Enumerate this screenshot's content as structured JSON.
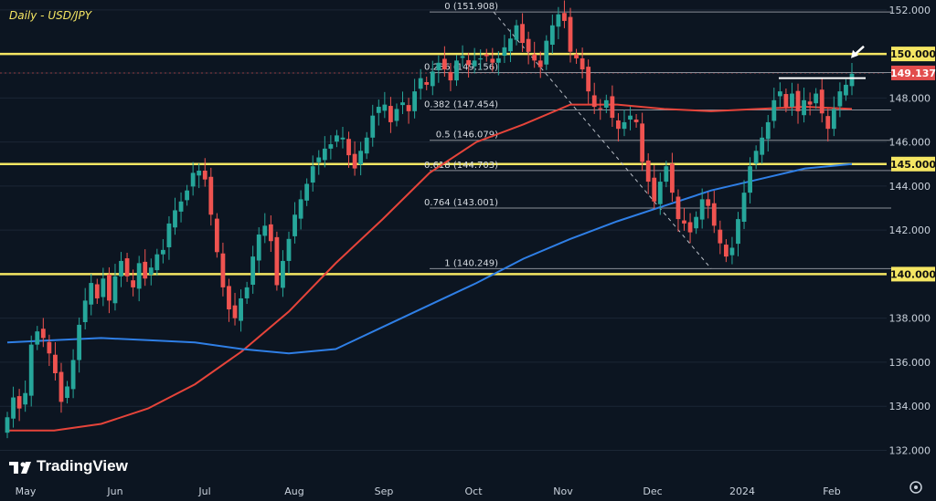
{
  "title": "Daily - USD/JPY",
  "brand": "TradingView",
  "chart_data": {
    "type": "candlestick",
    "title": "Daily - USD/JPY",
    "ylim": [
      130.9,
      152.45
    ],
    "y_ticks": [
      {
        "value": 132,
        "label": "132.000"
      },
      {
        "value": 134,
        "label": "134.000"
      },
      {
        "value": 136,
        "label": "136.000"
      },
      {
        "value": 138,
        "label": "138.000"
      },
      {
        "value": 140,
        "label": "140.000"
      },
      {
        "value": 142,
        "label": "142.000"
      },
      {
        "value": 144,
        "label": "144.000"
      },
      {
        "value": 145,
        "label": "145.000"
      },
      {
        "value": 146,
        "label": "146.000"
      },
      {
        "value": 148,
        "label": "148.000"
      },
      {
        "value": 149.137,
        "label": "149.137"
      },
      {
        "value": 150,
        "label": "150.000"
      },
      {
        "value": 152,
        "label": "152.000"
      }
    ],
    "x_ticks": [
      "May",
      "Jun",
      "Jul",
      "Aug",
      "Sep",
      "Oct",
      "Nov",
      "Dec",
      "2024",
      "Feb"
    ],
    "horizontal_levels": [
      {
        "value": 150.0,
        "label": "150.000",
        "color": "#f5e663"
      },
      {
        "value": 145.0,
        "label": "145.000",
        "color": "#f5e663"
      },
      {
        "value": 140.0,
        "label": "140.000",
        "color": "#f5e663"
      }
    ],
    "last_price": {
      "value": 149.137,
      "label": "149.137",
      "color": "#e24d4d"
    },
    "fibonacci": [
      {
        "ratio": "0",
        "value": 151.908,
        "label": "0 (151.908)"
      },
      {
        "ratio": "0.236",
        "value": 149.156,
        "label": "0.236 (149.156)"
      },
      {
        "ratio": "0.382",
        "value": 147.454,
        "label": "0.382 (147.454)"
      },
      {
        "ratio": "0.5",
        "value": 146.079,
        "label": "0.5 (146.079)"
      },
      {
        "ratio": "0.618",
        "value": 144.703,
        "label": "0.618 (144.703)"
      },
      {
        "ratio": "0.764",
        "value": 143.001,
        "label": "0.764 (143.001)"
      },
      {
        "ratio": "1",
        "value": 140.249,
        "label": "1 (140.249)"
      }
    ],
    "series": [
      {
        "name": "",
        "color": "#e6443a",
        "values": [
          132.9,
          132.9,
          133.2,
          133.9,
          135.0,
          136.5,
          138.3,
          140.5,
          142.5,
          144.6,
          146.0,
          146.8,
          147.7,
          147.7,
          147.5,
          147.4,
          147.5,
          147.6,
          147.5
        ]
      },
      {
        "name": "",
        "color": "#2f7fe6",
        "values": [
          136.9,
          137.0,
          137.1,
          137.0,
          136.9,
          136.6,
          136.4,
          136.6,
          137.6,
          138.6,
          139.6,
          140.7,
          141.6,
          142.4,
          143.1,
          143.8,
          144.3,
          144.8,
          145.0
        ]
      }
    ],
    "candles_close": [
      133.5,
      134.4,
      133.9,
      134.6,
      136.8,
      137.4,
      137.1,
      136.4,
      135.5,
      134.2,
      134.9,
      136.1,
      137.7,
      138.8,
      139.6,
      138.9,
      139.8,
      138.8,
      139.9,
      140.6,
      139.9,
      139.4,
      140.5,
      139.8,
      140.3,
      140.9,
      141.1,
      142.3,
      142.9,
      143.3,
      143.8,
      144.6,
      144.7,
      144.3,
      142.7,
      141.0,
      139.4,
      138.4,
      138.0,
      138.9,
      139.4,
      140.8,
      141.8,
      142.2,
      141.5,
      139.5,
      140.6,
      141.6,
      142.7,
      143.4,
      144.1,
      144.9,
      145.3,
      145.7,
      145.9,
      146.3,
      146.2,
      145.4,
      144.8,
      145.6,
      146.2,
      147.2,
      147.6,
      147.7,
      146.9,
      147.5,
      147.8,
      147.4,
      148.3,
      148.9,
      148.6,
      149.2,
      149.6,
      149.3,
      148.8,
      149.7,
      149.9,
      149.5,
      149.7,
      149.8,
      149.9,
      149.6,
      149.8,
      150.3,
      150.7,
      151.3,
      150.5,
      150.1,
      149.7,
      149.4,
      150.6,
      151.3,
      151.8,
      151.5,
      150.1,
      149.8,
      149.3,
      148.3,
      147.6,
      147.5,
      147.9,
      147.1,
      146.6,
      146.9,
      147.2,
      146.9,
      145.1,
      144.2,
      143.3,
      144.2,
      144.9,
      143.7,
      142.5,
      142.3,
      141.9,
      142.6,
      143.4,
      143.1,
      142.2,
      141.4,
      140.8,
      141.2,
      142.5,
      143.7,
      144.9,
      145.6,
      146.2,
      146.9,
      147.9,
      148.3,
      147.6,
      148.2,
      147.4,
      147.9,
      147.7,
      148.2,
      147.3,
      146.6,
      147.5,
      148.3,
      148.6,
      149.1
    ],
    "annotations": [
      {
        "type": "resistance-line",
        "value": 148.9
      },
      {
        "type": "arrow",
        "value": 149.6
      }
    ],
    "grid": true,
    "legend": "none"
  },
  "colors": {
    "background": "#0c1521",
    "up": "#26a69a",
    "down": "#ef5350",
    "level": "#f5e663",
    "fib_line": "#8a8f98",
    "axis_text": "#c9d1db"
  },
  "icons": {
    "settings": "gear-icon",
    "brand_logo": "tradingview-logo"
  }
}
